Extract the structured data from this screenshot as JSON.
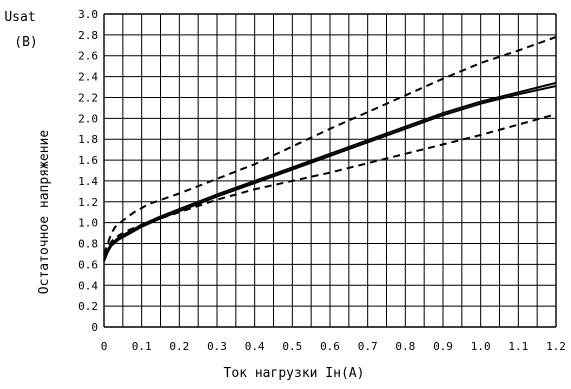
{
  "chart_data": {
    "type": "line",
    "ylabel_top": "Usat",
    "ylabel_unit": "(В)",
    "ylabel_rot": "Остаточное напряжение",
    "xlabel": "Ток нагрузки Iн(А)",
    "xlim": [
      0,
      1.2
    ],
    "ylim": [
      0,
      3.0
    ],
    "xticks": [
      "0",
      "0.1",
      "0.2",
      "0.3",
      "0.4",
      "0.5",
      "0.6",
      "0.7",
      "0.8",
      "0.9",
      "1.0",
      "1.1",
      "1.2"
    ],
    "yticks": [
      "0",
      "0.2",
      "0.4",
      "0.6",
      "0.8",
      "1.0",
      "1.2",
      "1.4",
      "1.6",
      "1.8",
      "2.0",
      "2.2",
      "2.4",
      "2.6",
      "2.8",
      "3.0"
    ],
    "x_grid_step": 0.05,
    "y_grid_step": 0.2,
    "grid": true,
    "series": [
      {
        "style": "dashed",
        "x": [
          0,
          0.01,
          0.02,
          0.03,
          0.05,
          0.08,
          0.12,
          0.2,
          0.3,
          0.4,
          0.5,
          0.6,
          0.7,
          0.8,
          0.9,
          1.0,
          1.1,
          1.2
        ],
        "y": [
          0.7,
          0.8,
          0.9,
          0.96,
          1.02,
          1.1,
          1.18,
          1.28,
          1.42,
          1.56,
          1.73,
          1.9,
          2.06,
          2.22,
          2.38,
          2.53,
          2.65,
          2.78
        ]
      },
      {
        "style": "solid",
        "x": [
          0,
          0.01,
          0.02,
          0.04,
          0.06,
          0.1,
          0.15,
          0.2,
          0.3,
          0.4,
          0.5,
          0.6,
          0.7,
          0.8,
          0.9,
          1.0,
          1.1,
          1.2
        ],
        "y": [
          0.65,
          0.74,
          0.8,
          0.86,
          0.9,
          0.98,
          1.06,
          1.13,
          1.27,
          1.4,
          1.53,
          1.66,
          1.79,
          1.92,
          2.05,
          2.16,
          2.25,
          2.34
        ]
      },
      {
        "style": "solid",
        "x": [
          0,
          0.01,
          0.02,
          0.04,
          0.06,
          0.1,
          0.15,
          0.2,
          0.3,
          0.4,
          0.5,
          0.6,
          0.7,
          0.8,
          0.9,
          1.0,
          1.1,
          1.2
        ],
        "y": [
          0.63,
          0.72,
          0.78,
          0.84,
          0.88,
          0.96,
          1.04,
          1.11,
          1.25,
          1.38,
          1.51,
          1.64,
          1.77,
          1.9,
          2.03,
          2.14,
          2.23,
          2.31
        ]
      },
      {
        "style": "dashed",
        "x": [
          0,
          0.01,
          0.02,
          0.04,
          0.06,
          0.1,
          0.15,
          0.2,
          0.3,
          0.4,
          0.5,
          0.6,
          0.7,
          0.8,
          0.9,
          1.0,
          1.1,
          1.2
        ],
        "y": [
          0.68,
          0.76,
          0.82,
          0.88,
          0.92,
          0.98,
          1.04,
          1.1,
          1.22,
          1.32,
          1.4,
          1.48,
          1.57,
          1.66,
          1.75,
          1.84,
          1.94,
          2.04
        ]
      }
    ]
  }
}
